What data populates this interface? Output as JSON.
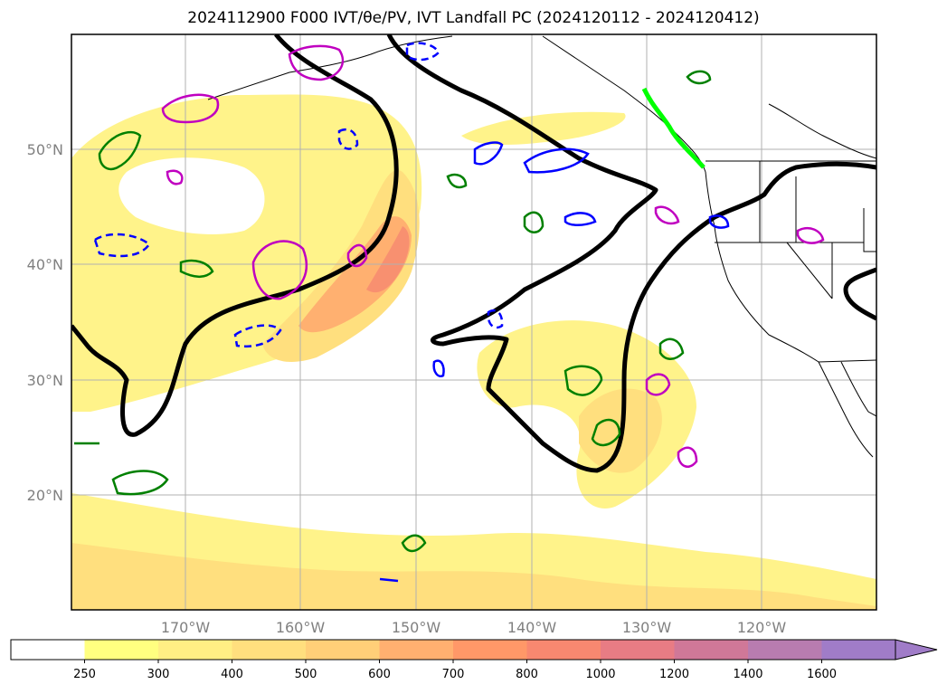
{
  "title": "2024112900 F000 IVT/θe/PV, IVT Landfall PC (2024120112 - 2024120412)",
  "lat_labels": [
    "50°N",
    "40°N",
    "30°N",
    "20°N"
  ],
  "lon_labels": [
    "170°W",
    "160°W",
    "150°W",
    "140°W",
    "130°W",
    "120°W"
  ],
  "colorbar": {
    "labels": [
      "250",
      "300",
      "400",
      "500",
      "600",
      "700",
      "800",
      "1000",
      "1200",
      "1400",
      "1600"
    ],
    "colors": [
      "#ffffff",
      "#ffff80",
      "#ffef84",
      "#ffdf7e",
      "#ffcf78",
      "#ffb070",
      "#ff9868",
      "#f88870",
      "#e87c84",
      "#d07898",
      "#b87cb0",
      "#a07cc8"
    ]
  },
  "colors": {
    "ivt_light": "#fff38a",
    "ivt_mid": "#ffd87e",
    "ivt_high": "#ffb070",
    "ivt_peak": "#f89070",
    "theta_e": "#000000",
    "pv_green": "#008000",
    "pv_blue": "#0000ff",
    "pv_magenta": "#c000c0",
    "landfall": "#00ff00",
    "grid": "#b0b0b0"
  }
}
